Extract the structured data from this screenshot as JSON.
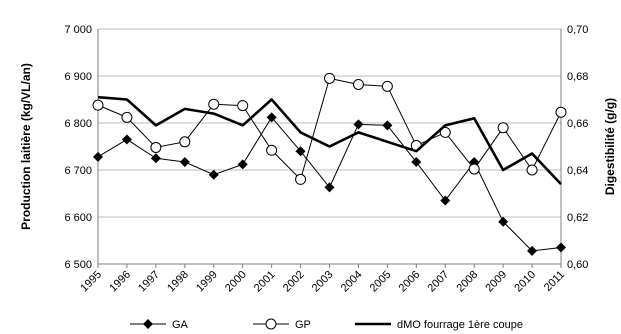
{
  "chart_data": {
    "type": "line",
    "x": [
      "1995",
      "1996",
      "1997",
      "1998",
      "1999",
      "2000",
      "2001",
      "2002",
      "2003",
      "2004",
      "2005",
      "2006",
      "2007",
      "2008",
      "2009",
      "2010",
      "2011"
    ],
    "ylabel_left": "Production laitière (kg/VL/an)",
    "ylabel_right": "Digestibilité (g/g)",
    "y_left": {
      "range": [
        6500,
        7000
      ],
      "ticks": [
        6500,
        6600,
        6700,
        6800,
        6900,
        7000
      ],
      "tick_labels": [
        "6 500",
        "6 600",
        "6 700",
        "6 800",
        "6 900",
        "7 000"
      ]
    },
    "y_right": {
      "range": [
        0.6,
        0.7
      ],
      "ticks": [
        0.6,
        0.62,
        0.64,
        0.66,
        0.68,
        0.7
      ],
      "tick_labels": [
        "0,60",
        "0,62",
        "0,64",
        "0,66",
        "0,68",
        "0,70"
      ]
    },
    "grid": true,
    "legend_position": "bottom",
    "series": [
      {
        "name": "GA",
        "axis": "left",
        "marker": "diamond-filled",
        "color": "#000000",
        "values": [
          6728,
          6765,
          6725,
          6717,
          6690,
          6712,
          6812,
          6740,
          6663,
          6797,
          6795,
          6717,
          6635,
          6717,
          6590,
          6528,
          6535
        ]
      },
      {
        "name": "GP",
        "axis": "left",
        "marker": "circle-open",
        "color": "#000000",
        "values": [
          6838,
          6812,
          6748,
          6760,
          6840,
          6837,
          6742,
          6680,
          6895,
          6882,
          6878,
          6752,
          6780,
          6702,
          6790,
          6700,
          6823
        ]
      },
      {
        "name": "dMO fourrage 1ère coupe",
        "axis": "right",
        "marker": "none",
        "color": "#000000",
        "values": [
          0.671,
          0.67,
          0.659,
          0.666,
          0.664,
          0.659,
          0.67,
          0.656,
          0.65,
          0.656,
          0.652,
          0.648,
          0.659,
          0.662,
          0.64,
          0.647,
          0.634
        ]
      }
    ]
  }
}
